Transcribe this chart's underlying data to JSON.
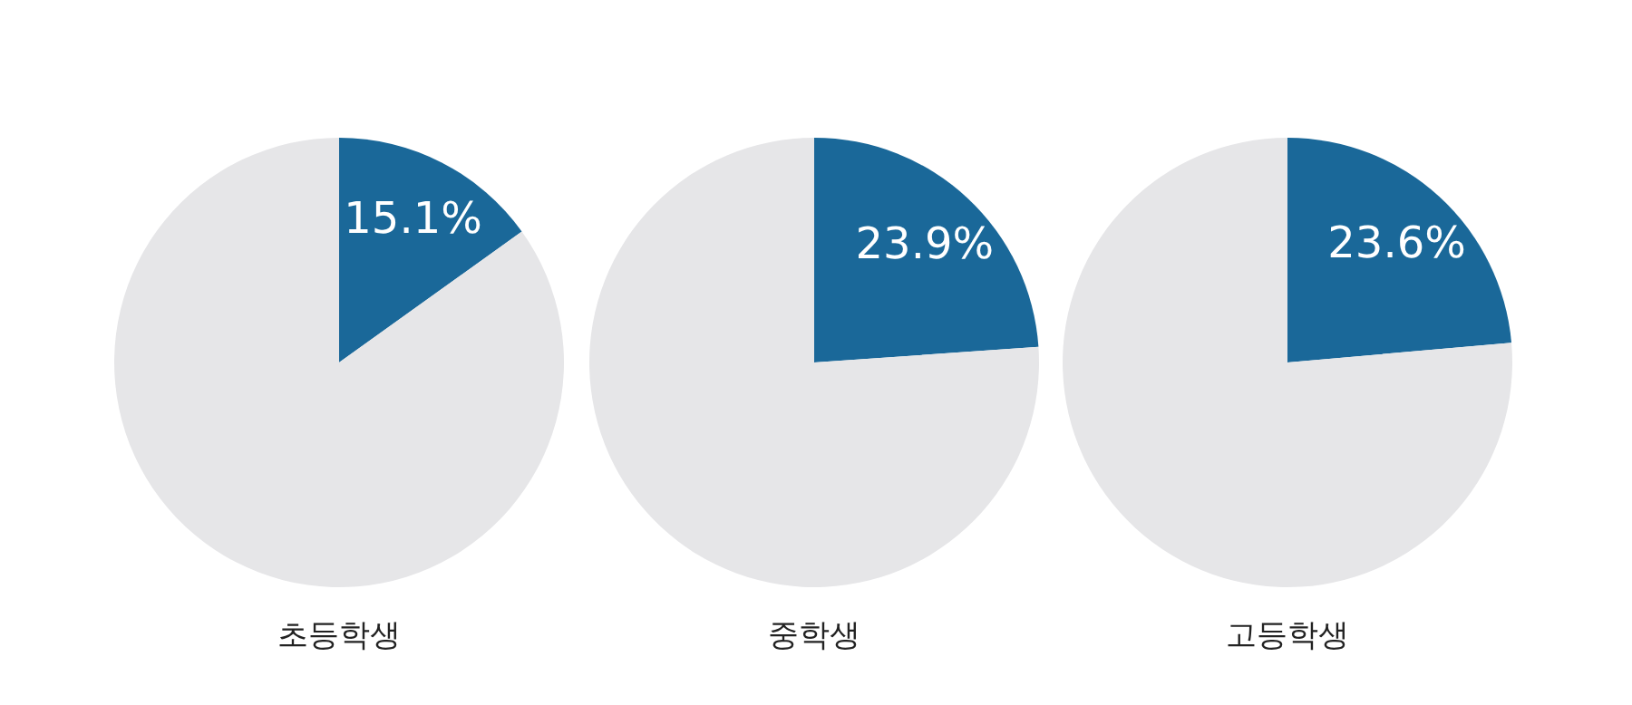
{
  "chart_data": [
    {
      "type": "pie",
      "title": "초등학생",
      "categories": [
        null,
        null
      ],
      "values": [
        15.1,
        84.9
      ],
      "colors": [
        "#1a6899",
        "#e6e6e8"
      ],
      "value_labels": [
        "15.1%",
        null
      ]
    },
    {
      "type": "pie",
      "title": "중학생",
      "categories": [
        null,
        null
      ],
      "values": [
        23.9,
        76.1
      ],
      "colors": [
        "#1a6899",
        "#e6e6e8"
      ],
      "value_labels": [
        "23.9%",
        null
      ]
    },
    {
      "type": "pie",
      "title": "고등학생",
      "categories": [
        null,
        null
      ],
      "values": [
        23.6,
        76.4
      ],
      "colors": [
        "#1a6899",
        "#e6e6e8"
      ],
      "value_labels": [
        "23.6%",
        null
      ]
    }
  ]
}
